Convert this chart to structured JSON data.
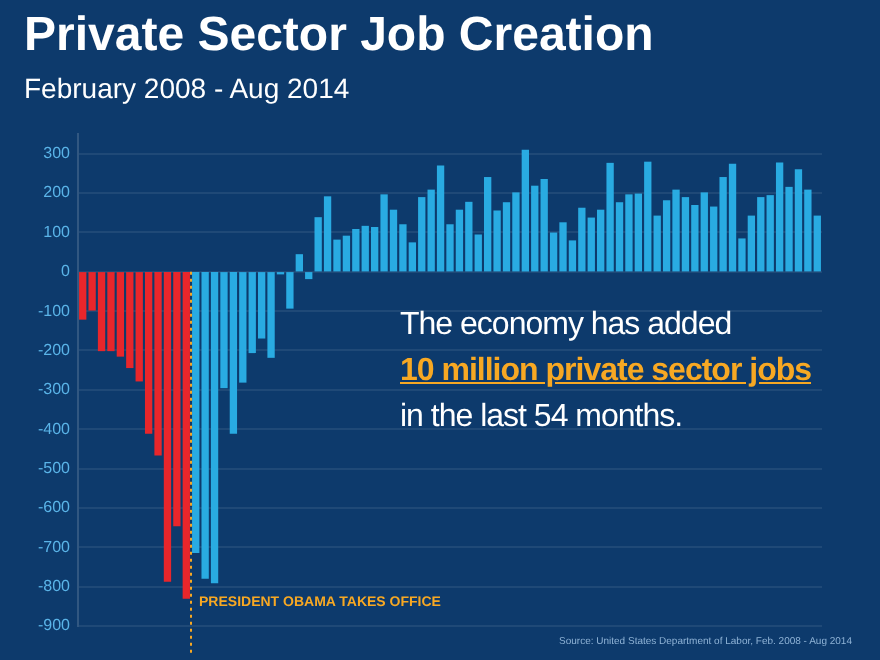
{
  "chart_data": {
    "type": "bar",
    "title": "Private Sector Job Creation",
    "subtitle": "February 2008 - Aug 2014",
    "categories": [
      null,
      null,
      null,
      null,
      null,
      null,
      null,
      null,
      null,
      null,
      null,
      null,
      null,
      null,
      null,
      null,
      null,
      null,
      null,
      null,
      null,
      null,
      null,
      null,
      null,
      null,
      null,
      null,
      null,
      null,
      null,
      null,
      null,
      null,
      null,
      null,
      null,
      null,
      null,
      null,
      null,
      null,
      null,
      null,
      null,
      null,
      null,
      null,
      null,
      null,
      null,
      null,
      null,
      null,
      null,
      null,
      null,
      null,
      null,
      null,
      null,
      null,
      null,
      null,
      null,
      null,
      null,
      null,
      null,
      null,
      null,
      null,
      null,
      null,
      null,
      null,
      null,
      null,
      null
    ],
    "values": [
      -120,
      -97,
      -200,
      -200,
      -214,
      -243,
      -277,
      -410,
      -465,
      -786,
      -645,
      -829,
      -713,
      -778,
      -790,
      -294,
      -410,
      -280,
      -205,
      -168,
      -217,
      -5,
      -92,
      43,
      -17,
      137,
      190,
      80,
      90,
      107,
      115,
      112,
      195,
      156,
      119,
      73,
      188,
      207,
      268,
      119,
      156,
      176,
      93,
      239,
      154,
      175,
      200,
      308,
      217,
      234,
      98,
      124,
      78,
      161,
      136,
      156,
      275,
      175,
      195,
      197,
      278,
      141,
      180,
      207,
      188,
      168,
      200,
      164,
      239,
      273,
      83,
      141,
      188,
      193,
      276,
      214,
      259,
      207,
      141
    ],
    "colors": [
      "#e8262b",
      "#e8262b",
      "#e8262b",
      "#e8262b",
      "#e8262b",
      "#e8262b",
      "#e8262b",
      "#e8262b",
      "#e8262b",
      "#e8262b",
      "#e8262b",
      "#e8262b",
      "#29abe2",
      "#29abe2",
      "#29abe2",
      "#29abe2",
      "#29abe2",
      "#29abe2",
      "#29abe2",
      "#29abe2",
      "#29abe2",
      "#29abe2",
      "#29abe2",
      "#29abe2",
      "#29abe2",
      "#29abe2",
      "#29abe2",
      "#29abe2",
      "#29abe2",
      "#29abe2",
      "#29abe2",
      "#29abe2",
      "#29abe2",
      "#29abe2",
      "#29abe2",
      "#29abe2",
      "#29abe2",
      "#29abe2",
      "#29abe2",
      "#29abe2",
      "#29abe2",
      "#29abe2",
      "#29abe2",
      "#29abe2",
      "#29abe2",
      "#29abe2",
      "#29abe2",
      "#29abe2",
      "#29abe2",
      "#29abe2",
      "#29abe2",
      "#29abe2",
      "#29abe2",
      "#29abe2",
      "#29abe2",
      "#29abe2",
      "#29abe2",
      "#29abe2",
      "#29abe2",
      "#29abe2",
      "#29abe2",
      "#29abe2",
      "#29abe2",
      "#29abe2",
      "#29abe2",
      "#29abe2",
      "#29abe2",
      "#29abe2",
      "#29abe2",
      "#29abe2",
      "#29abe2",
      "#29abe2",
      "#29abe2",
      "#29abe2",
      "#29abe2",
      "#29abe2",
      "#29abe2",
      "#29abe2",
      "#29abe2"
    ],
    "ylim": [
      -900,
      350
    ],
    "yticks": [
      -900,
      -800,
      -700,
      -600,
      -500,
      -400,
      -300,
      -200,
      -100,
      0,
      100,
      200,
      300
    ],
    "tick_labels": "y",
    "grid": "y",
    "legend": false,
    "annotations": [
      "The economy has added",
      "10 million private sector jobs",
      "in the last 54 months.",
      "Source: United States Department of Labor, Feb. 2008 - Aug 2014",
      "PRESIDENT OBAMA TAKES OFFICE"
    ]
  }
}
